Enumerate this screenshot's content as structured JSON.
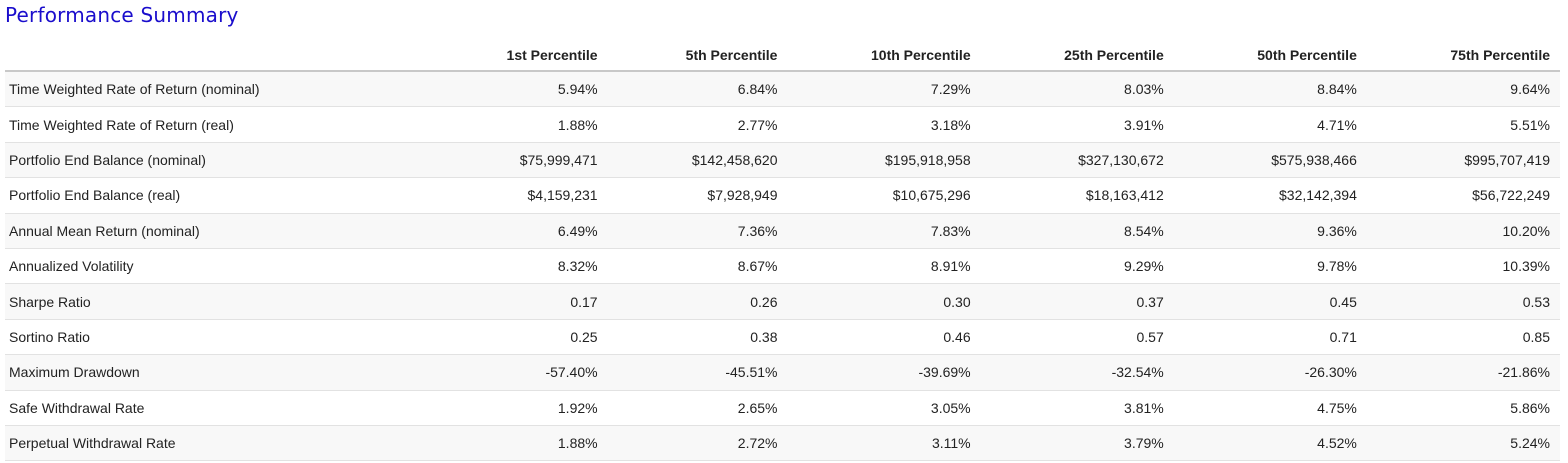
{
  "title": "Performance Summary",
  "table": {
    "label_header": "",
    "columns": [
      "1st Percentile",
      "5th Percentile",
      "10th Percentile",
      "25th Percentile",
      "50th Percentile",
      "75th Percentile"
    ],
    "rows": [
      {
        "label": "Time Weighted Rate of Return (nominal)",
        "values": [
          "5.94%",
          "6.84%",
          "7.29%",
          "8.03%",
          "8.84%",
          "9.64%"
        ]
      },
      {
        "label": "Time Weighted Rate of Return (real)",
        "values": [
          "1.88%",
          "2.77%",
          "3.18%",
          "3.91%",
          "4.71%",
          "5.51%"
        ]
      },
      {
        "label": "Portfolio End Balance (nominal)",
        "values": [
          "$75,999,471",
          "$142,458,620",
          "$195,918,958",
          "$327,130,672",
          "$575,938,466",
          "$995,707,419"
        ]
      },
      {
        "label": "Portfolio End Balance (real)",
        "values": [
          "$4,159,231",
          "$7,928,949",
          "$10,675,296",
          "$18,163,412",
          "$32,142,394",
          "$56,722,249"
        ]
      },
      {
        "label": "Annual Mean Return (nominal)",
        "values": [
          "6.49%",
          "7.36%",
          "7.83%",
          "8.54%",
          "9.36%",
          "10.20%"
        ]
      },
      {
        "label": "Annualized Volatility",
        "values": [
          "8.32%",
          "8.67%",
          "8.91%",
          "9.29%",
          "9.78%",
          "10.39%"
        ]
      },
      {
        "label": "Sharpe Ratio",
        "values": [
          "0.17",
          "0.26",
          "0.30",
          "0.37",
          "0.45",
          "0.53"
        ]
      },
      {
        "label": "Sortino Ratio",
        "values": [
          "0.25",
          "0.38",
          "0.46",
          "0.57",
          "0.71",
          "0.85"
        ]
      },
      {
        "label": "Maximum Drawdown",
        "values": [
          "-57.40%",
          "-45.51%",
          "-39.69%",
          "-32.54%",
          "-26.30%",
          "-21.86%"
        ]
      },
      {
        "label": "Safe Withdrawal Rate",
        "values": [
          "1.92%",
          "2.65%",
          "3.05%",
          "3.81%",
          "4.75%",
          "5.86%"
        ]
      },
      {
        "label": "Perpetual Withdrawal Rate",
        "values": [
          "1.88%",
          "2.72%",
          "3.11%",
          "3.79%",
          "4.52%",
          "5.24%"
        ]
      }
    ]
  }
}
